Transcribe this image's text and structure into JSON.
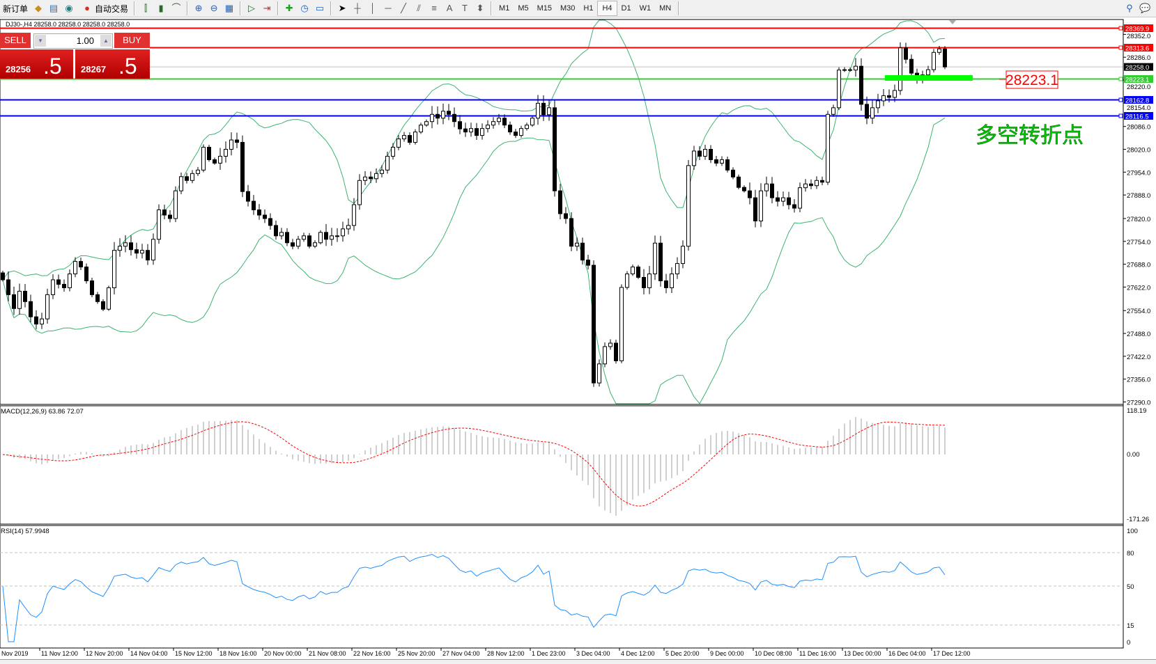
{
  "toolbar": {
    "new_order": "新订单",
    "auto_trading": "自动交易",
    "timeframes": [
      "M1",
      "M5",
      "M15",
      "M30",
      "H1",
      "H4",
      "D1",
      "W1",
      "MN"
    ],
    "active_timeframe": "H4"
  },
  "chart_header": "DJ30-,H4  28258.0 28258.0 28258.0 28258.0",
  "trade_panel": {
    "sell_label": "SELL",
    "buy_label": "BUY",
    "lot": "1.00",
    "sell_price_main": "28256",
    "sell_price_frac": ".5",
    "buy_price_main": "28267",
    "buy_price_frac": ".5"
  },
  "annotation": {
    "price_box": "28223.1",
    "text": "多空转折点",
    "text_color": "#00cc00"
  },
  "chart_data": {
    "type": "candlestick",
    "symbol": "DJ30-",
    "timeframe": "H4",
    "closes": [
      27643,
      27600,
      27560,
      27610,
      27580,
      27536,
      27515,
      27530,
      27600,
      27643,
      27630,
      27620,
      27660,
      27696,
      27680,
      27640,
      27600,
      27580,
      27558,
      27620,
      27728,
      27740,
      27750,
      27730,
      27720,
      27728,
      27700,
      27760,
      27845,
      27830,
      27820,
      27900,
      27941,
      27930,
      27950,
      27960,
      28026,
      27990,
      27980,
      28000,
      28020,
      28047,
      28040,
      27898,
      27870,
      27845,
      27830,
      27820,
      27800,
      27770,
      27780,
      27750,
      27740,
      27760,
      27770,
      27740,
      27750,
      27780,
      27760,
      27770,
      27770,
      27790,
      27800,
      27860,
      27930,
      27940,
      27935,
      27950,
      27960,
      28000,
      28026,
      28050,
      28060,
      28040,
      28070,
      28090,
      28100,
      28121,
      28110,
      28130,
      28121,
      28100,
      28079,
      28070,
      28080,
      28060,
      28080,
      28090,
      28100,
      28110,
      28090,
      28070,
      28060,
      28080,
      28090,
      28110,
      28153,
      28120,
      28140,
      27900,
      27834,
      27820,
      27740,
      27749,
      27700,
      27685,
      27345,
      27400,
      27450,
      27460,
      27409,
      27621,
      27660,
      27680,
      27650,
      27620,
      27660,
      27749,
      27640,
      27620,
      27660,
      27690,
      27740,
      27973,
      28015,
      28000,
      28020,
      27990,
      27980,
      27990,
      27960,
      27940,
      27910,
      27900,
      27880,
      27813,
      27900,
      27920,
      27880,
      27870,
      27880,
      27860,
      27850,
      27909,
      27920,
      27915,
      27930,
      27925,
      28121,
      28140,
      28249,
      28250,
      28249,
      28260,
      28150,
      28110,
      28140,
      28160,
      28175,
      28170,
      28190,
      28313,
      28280,
      28240,
      28220,
      28235,
      28250,
      28300,
      28310,
      28258
    ],
    "price_axis": [
      "28352.0",
      "28286.0",
      "28220.0",
      "28154.0",
      "28086.0",
      "28020.0",
      "27954.0",
      "27888.0",
      "27820.0",
      "27754.0",
      "27688.0",
      "27622.0",
      "27554.0",
      "27488.0",
      "27422.0",
      "27356.0",
      "27290.0"
    ],
    "ylim": [
      27283,
      28393
    ],
    "time_axis": [
      "Nov 2019",
      "11 Nov 12:00",
      "12 Nov 20:00",
      "14 Nov 04:00",
      "15 Nov 12:00",
      "18 Nov 16:00",
      "20 Nov 00:00",
      "21 Nov 08:00",
      "22 Nov 16:00",
      "25 Nov 20:00",
      "27 Nov 04:00",
      "28 Nov 12:00",
      "1 Dec 23:00",
      "3 Dec 04:00",
      "4 Dec 12:00",
      "5 Dec 20:00",
      "9 Dec 00:00",
      "10 Dec 08:00",
      "11 Dec 16:00",
      "13 Dec 00:00",
      "16 Dec 04:00",
      "17 Dec 12:00"
    ],
    "hlines": [
      {
        "price": 28369.9,
        "label": "28369.9",
        "color": "#ff0000",
        "full": true
      },
      {
        "price": 28313.6,
        "label": "28313.6",
        "color": "#ff0000",
        "full": false
      },
      {
        "price": 28258.0,
        "label": "28258.0",
        "color": "#c0c0c0",
        "tag": "#000000",
        "full": false
      },
      {
        "price": 28223.1,
        "label": "28223.1",
        "color": "#33cc33",
        "full": true
      },
      {
        "price": 28162.8,
        "label": "28162.8",
        "color": "#0000ff",
        "full": true
      },
      {
        "price": 28116.5,
        "label": "28116.5",
        "color": "#0000ff",
        "full": true
      }
    ],
    "bollinger": {
      "period": 20,
      "deviation": 2,
      "color": "#3cb371"
    },
    "macd": {
      "label": "MACD(12,26,9) 63.86 72.07",
      "axis": [
        "118.19",
        "0.00",
        "-171.26"
      ],
      "ylim": [
        -171.26,
        118.19
      ],
      "hist_color": "#c0c0c0",
      "signal_color": "#ff0000"
    },
    "rsi": {
      "label": "RSI(14) 57.9948",
      "axis": [
        "100",
        "80",
        "50",
        "15",
        "0"
      ],
      "levels": [
        80,
        50,
        15
      ],
      "color": "#1e90ff"
    }
  }
}
